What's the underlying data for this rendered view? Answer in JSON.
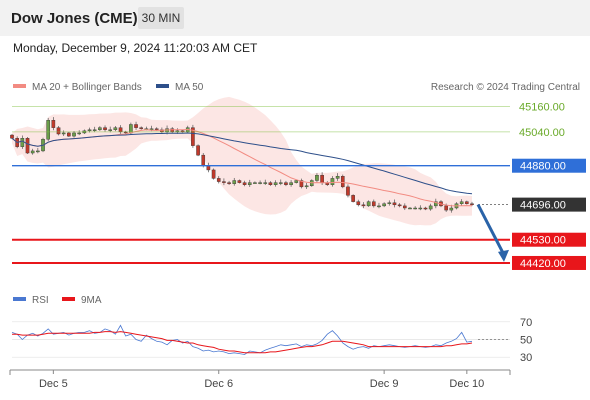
{
  "header": {
    "title": "Dow Jones (CME)",
    "timeframe": "30 MIN"
  },
  "timestamp": "Monday, December 9, 2024 11:20:03 AM CET",
  "legend": {
    "bb": "MA 20 + Bollinger Bands",
    "ma50": "MA 50",
    "credit": "Research © 2024 Trading Central"
  },
  "rsi_legend": {
    "rsi": "RSI",
    "ma": "9MA"
  },
  "colors": {
    "bb": "#f28b82",
    "ma50": "#2d4f8a",
    "green": "#7fbf3f",
    "blue": "#2f6fd8",
    "red": "#e8161b",
    "dark": "#333333",
    "arrow": "#2a63a8",
    "rsi": "#4a78d1",
    "rsima": "#e8161b"
  },
  "chart_data": {
    "type": "candlestick",
    "price_range": [
      44330,
      45205
    ],
    "x_labels": [
      "Dec 5",
      "Dec 6",
      "Dec 9",
      "Dec 10"
    ],
    "x_label_index": [
      8,
      40,
      72,
      88
    ],
    "close": [
      45010,
      44970,
      45010,
      44940,
      44950,
      44950,
      45005,
      45095,
      45060,
      45030,
      45035,
      45020,
      45035,
      45035,
      45045,
      45050,
      45050,
      45060,
      45050,
      45050,
      45060,
      45040,
      45035,
      45075,
      45060,
      45055,
      45055,
      45055,
      45050,
      45040,
      45055,
      45040,
      45045,
      45040,
      45060,
      44975,
      44930,
      44880,
      44860,
      44820,
      44805,
      44800,
      44795,
      44810,
      44800,
      44790,
      44800,
      44800,
      44800,
      44800,
      44790,
      44800,
      44800,
      44790,
      44800,
      44810,
      44780,
      44785,
      44810,
      44835,
      44800,
      44790,
      44820,
      44830,
      44780,
      44740,
      44710,
      44695,
      44690,
      44710,
      44690,
      44690,
      44700,
      44705,
      44695,
      44690,
      44680,
      44680,
      44680,
      44680,
      44675,
      44690,
      44710,
      44690,
      44670,
      44680,
      44700,
      44710,
      44700,
      44696
    ],
    "levels": [
      {
        "price": 45160,
        "label": "45160.00",
        "style": "green"
      },
      {
        "price": 45040,
        "label": "45040.00",
        "style": "green"
      },
      {
        "price": 44880,
        "label": "44880.00",
        "style": "blue"
      },
      {
        "price": 44696,
        "label": "44696.00",
        "style": "dark"
      },
      {
        "price": 44530,
        "label": "44530.00",
        "style": "red"
      },
      {
        "price": 44420,
        "label": "44420.00",
        "style": "red"
      }
    ],
    "forecast_arrow": {
      "from_price": 44696,
      "to_price": 44430
    },
    "rsi": {
      "range": [
        20,
        80
      ],
      "ticks": [
        70,
        50,
        30
      ],
      "values": [
        58,
        56,
        50,
        55,
        57,
        54,
        57,
        62,
        56,
        57,
        58,
        55,
        57,
        58,
        58,
        60,
        57,
        58,
        62,
        60,
        56,
        66,
        54,
        56,
        50,
        48,
        55,
        51,
        48,
        47,
        44,
        49,
        50,
        46,
        48,
        42,
        40,
        37,
        38,
        36,
        37,
        36,
        34,
        35,
        34,
        33,
        37,
        36,
        35,
        38,
        40,
        42,
        44,
        43,
        44,
        45,
        42,
        44,
        43,
        45,
        49,
        56,
        60,
        54,
        46,
        42,
        39,
        41,
        42,
        40,
        43,
        42,
        43,
        44,
        43,
        42,
        41,
        42,
        43,
        42,
        41,
        42,
        44,
        43,
        46,
        48,
        51,
        58,
        47,
        48
      ],
      "ma": [
        56,
        56,
        55,
        55,
        55,
        55,
        56,
        57,
        57,
        57,
        57,
        57,
        57,
        57,
        57,
        57,
        58,
        58,
        59,
        59,
        58,
        59,
        58,
        57,
        56,
        55,
        54,
        53,
        52,
        51,
        49,
        49,
        48,
        47,
        46,
        46,
        44,
        43,
        42,
        41,
        39,
        38,
        37,
        37,
        36,
        35,
        35,
        35,
        35,
        35,
        36,
        36,
        37,
        38,
        39,
        40,
        41,
        42,
        42,
        43,
        44,
        46,
        48,
        48,
        48,
        47,
        46,
        45,
        44,
        42,
        42,
        42,
        42,
        42,
        42,
        42,
        42,
        42,
        42,
        42,
        42,
        42,
        42,
        42,
        43,
        43,
        44,
        45,
        45,
        46
      ]
    }
  }
}
